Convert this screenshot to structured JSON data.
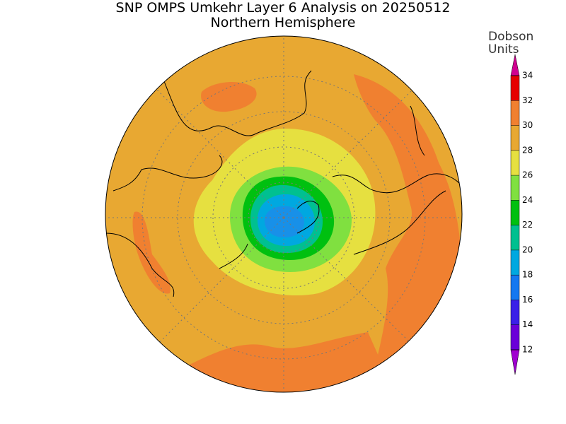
{
  "header": {
    "title": "SNP OMPS Umkehr Layer 6 Analysis on 20250512",
    "subtitle": "Northern Hemisphere"
  },
  "colorbar": {
    "label": [
      "Dobson",
      "Units"
    ],
    "levels": [
      12,
      14,
      16,
      18,
      20,
      22,
      24,
      26,
      28,
      30,
      32,
      34
    ],
    "colors": [
      "#6a00d8",
      "#3a20e8",
      "#1478f0",
      "#00a8e0",
      "#00c090",
      "#00c010",
      "#80e040",
      "#e6e040",
      "#e8a832",
      "#f08030",
      "#e60000"
    ],
    "under_color": "#a000d0",
    "over_color": "#d00090"
  }
}
